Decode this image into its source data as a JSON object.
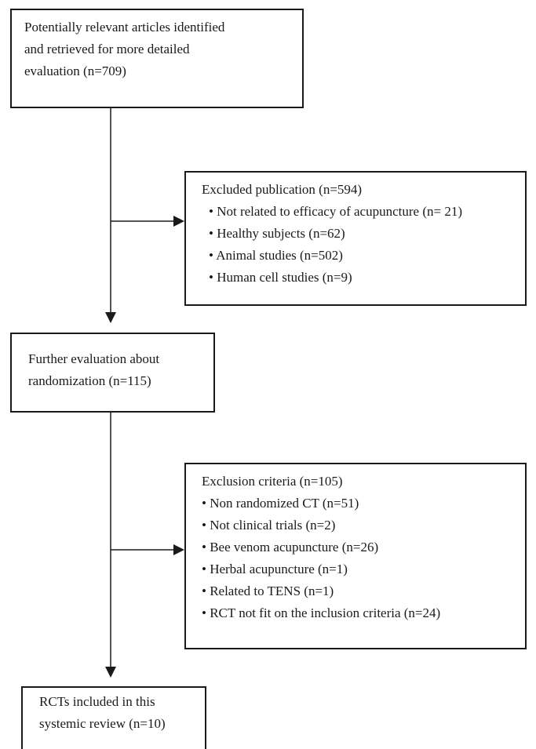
{
  "boxes": {
    "identified": {
      "lines": [
        "Potentially relevant articles identified",
        "and retrieved for more detailed",
        "evaluation (n=709)"
      ]
    },
    "excluded": {
      "heading": "Excluded publication (n=594)",
      "items": [
        "• Not related to efficacy of acupuncture (n= 21)",
        "• Healthy subjects (n=62)",
        "• Animal studies (n=502)",
        "• Human cell studies (n=9)"
      ]
    },
    "further": {
      "lines": [
        "Further evaluation about",
        "randomization (n=115)"
      ]
    },
    "exclusion_criteria": {
      "heading": "Exclusion criteria (n=105)",
      "items": [
        "• Non randomized CT (n=51)",
        "• Not clinical trials (n=2)",
        "• Bee venom acupuncture (n=26)",
        "• Herbal acupuncture (n=1)",
        "• Related to TENS (n=1)",
        "• RCT not fit on the inclusion criteria (n=24)"
      ]
    },
    "included": {
      "lines": [
        "RCTs included in this",
        "systemic review (n=10)"
      ]
    }
  },
  "colors": {
    "line": "#1a1a1a",
    "background": "#ffffff"
  }
}
